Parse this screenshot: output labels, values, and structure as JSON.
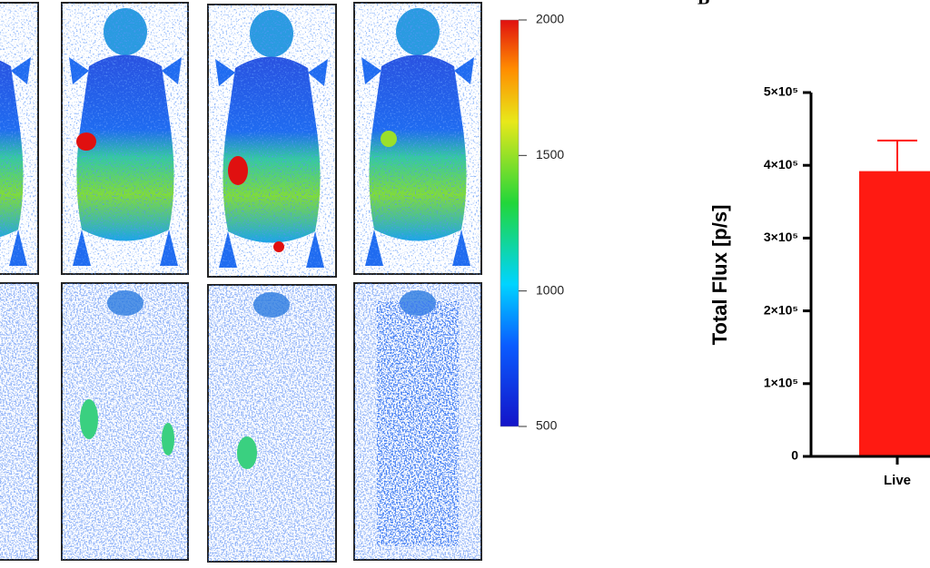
{
  "chart_data": [
    {
      "type": "colorbar",
      "ylim": [
        500,
        2000
      ],
      "yticks": [
        500,
        1000,
        1500,
        2000
      ]
    },
    {
      "type": "bar",
      "label": "B",
      "ylabel": "Total Flux [p/s]",
      "categories": [
        "Live"
      ],
      "values": [
        392000
      ],
      "errors": [
        42000
      ],
      "color": "#ff1a12",
      "ylim": [
        0,
        500000
      ],
      "yticks": [
        0,
        {
          "value": 100000,
          "label": "1×10⁵"
        },
        {
          "value": 200000,
          "label": "2×10⁵"
        },
        {
          "value": 300000,
          "label": "3×10⁵"
        },
        {
          "value": 400000,
          "label": "4×10⁵"
        },
        {
          "value": 500000,
          "label": "5×10⁵"
        }
      ]
    }
  ]
}
